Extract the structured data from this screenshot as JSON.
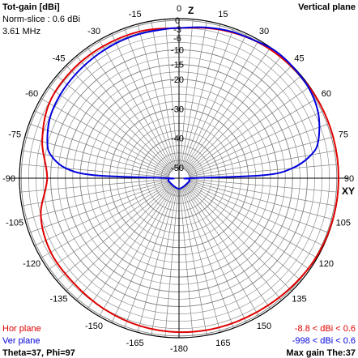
{
  "header": {
    "title": "Tot-gain [dBi]",
    "norm_slice": "Norm-slice : 0.6 dBi",
    "frequency": "3.61 MHz",
    "plane": "Vertical plane"
  },
  "footer": {
    "hor_legend": "Hor plane",
    "ver_legend": "Ver plane",
    "cursor": "Theta=37, Phi=97",
    "hor_range": "-8.8 < dBi < 0.6",
    "ver_range": "-998 < dBi < 0.6",
    "max_gain": "Max gain The:37"
  },
  "axes": {
    "top": "Z",
    "right": "XY"
  },
  "colors": {
    "hor": "#e00000",
    "ver": "#0000dd",
    "grid": "#808080",
    "axis": "#000000"
  },
  "chart_data": {
    "type": "polar",
    "angle_ticks": [
      "-15",
      "0",
      "15",
      "30",
      "45",
      "60",
      "75",
      "90",
      "105",
      "120",
      "135",
      "150",
      "165",
      "-180",
      "-165",
      "-150",
      "-135",
      "-120",
      "-105",
      "-90",
      "-75",
      "-60",
      "-45",
      "-30"
    ],
    "radial_ticks": [
      "0",
      "-3",
      "-6",
      "-10",
      "-15",
      "-20",
      "-30",
      "-40",
      "-50"
    ],
    "series": [
      {
        "name": "Hor plane",
        "angles_deg": [
          0,
          15,
          30,
          45,
          60,
          75,
          90,
          105,
          120,
          135,
          150,
          165,
          180,
          195,
          210,
          225,
          240,
          255,
          270,
          285,
          300,
          315,
          330,
          345
        ],
        "gain_dbi": [
          -2.6,
          -1.3,
          -0.2,
          0.2,
          0.5,
          0.6,
          0.6,
          0.5,
          0.2,
          -0.5,
          -1.0,
          -1.1,
          -1.3,
          -1.7,
          -2.4,
          -3.1,
          -3.3,
          -5.0,
          -8.8,
          -5.5,
          -2.7,
          -2.0,
          -1.9,
          -2.0
        ]
      },
      {
        "name": "Ver plane",
        "angles_deg": [
          0,
          10,
          20,
          30,
          37,
          45,
          55,
          65,
          75,
          80,
          85,
          88,
          90,
          92,
          95,
          100,
          105,
          110,
          180,
          250,
          255,
          260,
          265,
          268,
          270,
          272,
          275,
          280,
          285,
          295,
          305,
          315,
          325,
          335,
          345,
          355
        ],
        "gain_dbi": [
          -2.6,
          -1.6,
          -0.7,
          -0.1,
          0.6,
          0.5,
          0.1,
          -1.4,
          -4.6,
          -8.0,
          -15.0,
          -25.0,
          -998,
          -998,
          -998,
          -998,
          -998,
          -998,
          -998,
          -998,
          -998,
          -998,
          -998,
          -998,
          -998,
          -25.0,
          -15.0,
          -9.5,
          -7.3,
          -5.2,
          -4.3,
          -3.8,
          -3.4,
          -3.0,
          -2.8,
          -2.7
        ]
      }
    ]
  }
}
